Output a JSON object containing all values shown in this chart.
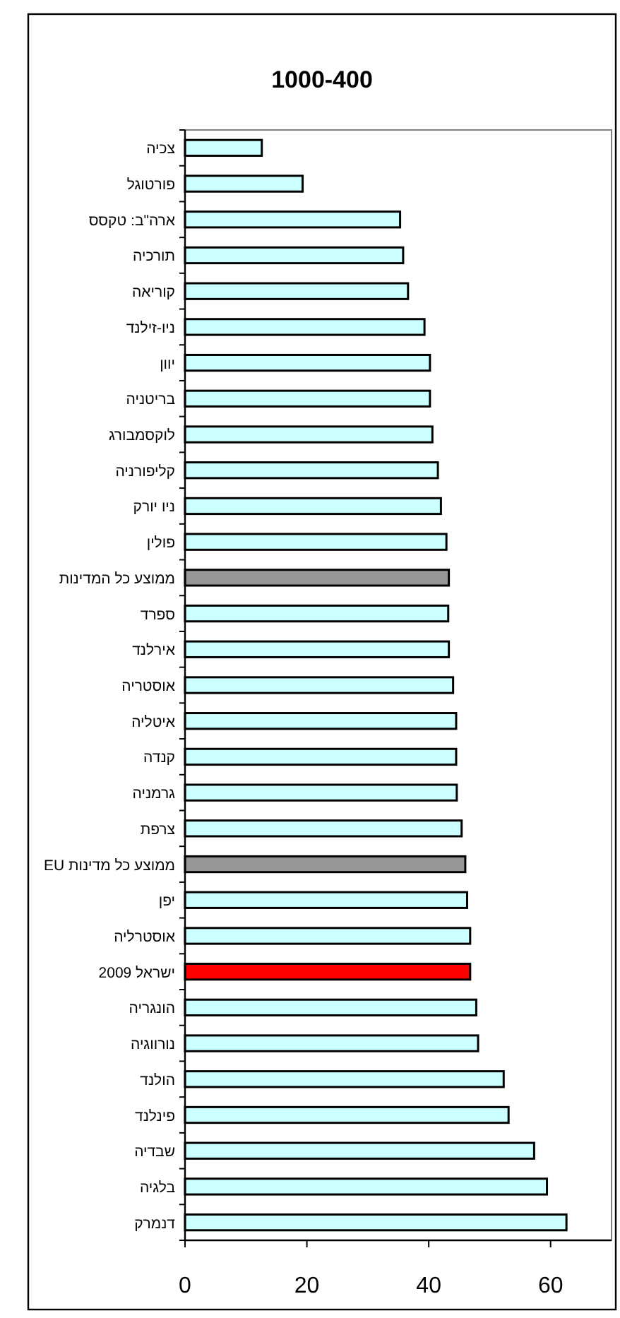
{
  "chart_data": {
    "type": "bar",
    "orientation": "horizontal",
    "title": "1000-400",
    "categories": [
      "צכיה",
      "פורטוגל",
      "ארה\"ב: טקסס",
      "תורכיה",
      "קוריאה",
      "ניו-זילנד",
      "יוון",
      "בריטניה",
      "לוקסמבורג",
      "קליפורניה",
      "ניו יורק",
      "פולין",
      "ממוצע כל המדינות",
      "ספרד",
      "אירלנד",
      "אוסטריה",
      "איטליה",
      "קנדה",
      "גרמניה",
      "צרפת",
      "ממוצע כל מדינות EU",
      "יפן",
      "אוסטרליה",
      "ישראל 2009",
      "הונגריה",
      "נורווגיה",
      "הולנד",
      "פינלנד",
      "שבדיה",
      "בלגיה",
      "דנמרק"
    ],
    "values": [
      12.6,
      19.3,
      35.3,
      35.8,
      36.6,
      39.3,
      40.2,
      40.2,
      40.6,
      41.5,
      42.0,
      42.9,
      43.3,
      43.2,
      43.3,
      44.0,
      44.5,
      44.5,
      44.6,
      45.4,
      46.0,
      46.3,
      46.8,
      46.8,
      47.8,
      48.1,
      52.3,
      53.1,
      57.3,
      59.4,
      62.6
    ],
    "colors": [
      "#ccffff",
      "#ccffff",
      "#ccffff",
      "#ccffff",
      "#ccffff",
      "#ccffff",
      "#ccffff",
      "#ccffff",
      "#ccffff",
      "#ccffff",
      "#ccffff",
      "#ccffff",
      "#969696",
      "#ccffff",
      "#ccffff",
      "#ccffff",
      "#ccffff",
      "#ccffff",
      "#ccffff",
      "#ccffff",
      "#969696",
      "#ccffff",
      "#ccffff",
      "#ff0000",
      "#ccffff",
      "#ccffff",
      "#ccffff",
      "#ccffff",
      "#ccffff",
      "#ccffff",
      "#ccffff"
    ],
    "xlim": [
      0,
      70
    ],
    "xticks": [
      0,
      20,
      40,
      60
    ]
  }
}
